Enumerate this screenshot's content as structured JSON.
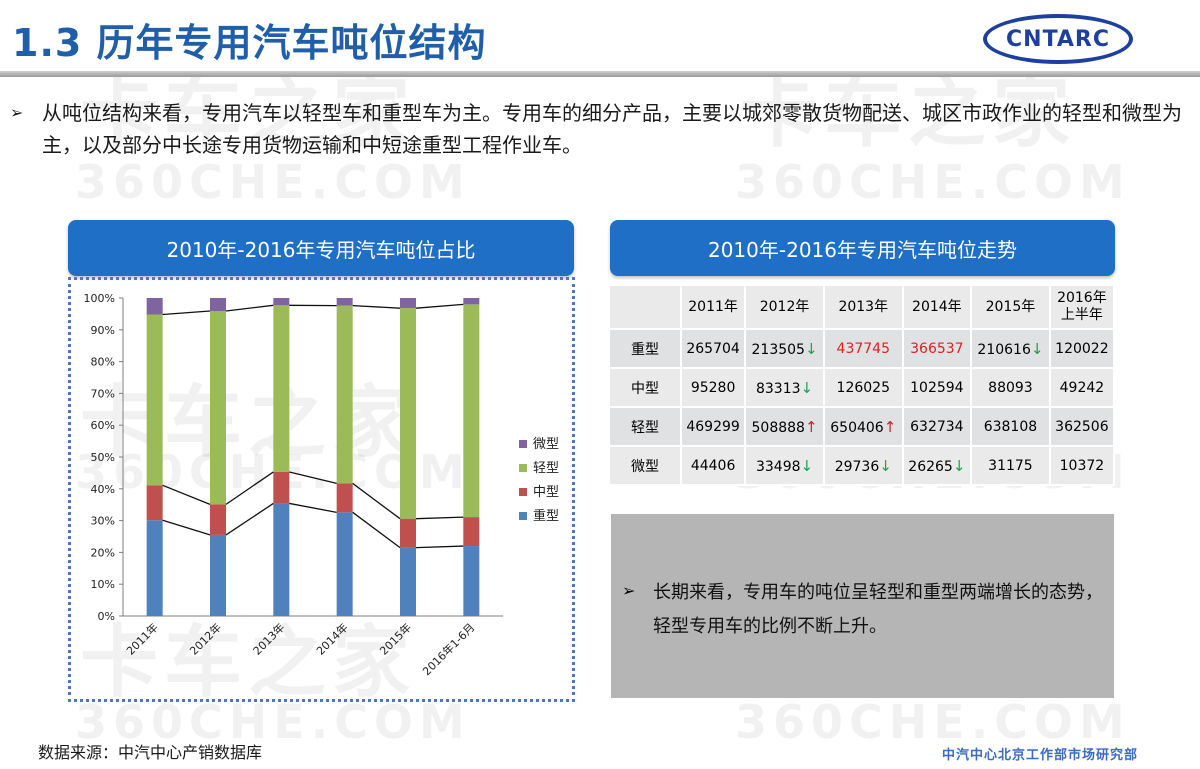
{
  "page": {
    "title": "1.3 历年专用汽车吨位结构",
    "logo_text": "CNTARC",
    "intro": "从吨位结构来看，专用汽车以轻型车和重型车为主。专用车的细分产品，主要以城郊零散货物配送、城区市政作业的轻型和微型为主，以及部分中长途专用货物运输和中短途重型工程作业车。",
    "bullet": "➢",
    "source": "数据来源：中汽中心产销数据库",
    "org": "中汽中心北京工作部市场研究部",
    "watermark": {
      "logo": "卡车之家",
      "url": "360CHE.COM"
    }
  },
  "chart_panel": {
    "title": "2010年-2016年专用汽车吨位占比"
  },
  "table_panel": {
    "title": "2010年-2016年专用汽车吨位走势",
    "headers": [
      "",
      "2011年",
      "2012年",
      "2013年",
      "2014年",
      "2015年",
      "2016年上半年"
    ],
    "header_last_line1": "2016年",
    "header_last_line2": "上半年",
    "rows": [
      {
        "label": "重型",
        "cells": [
          {
            "v": "265704",
            "red": false,
            "arrow": ""
          },
          {
            "v": "213505",
            "red": false,
            "arrow": "down"
          },
          {
            "v": "437745",
            "red": true,
            "arrow": ""
          },
          {
            "v": "366537",
            "red": true,
            "arrow": ""
          },
          {
            "v": "210616",
            "red": false,
            "arrow": "down"
          },
          {
            "v": "120022",
            "red": false,
            "arrow": ""
          }
        ]
      },
      {
        "label": "中型",
        "cells": [
          {
            "v": "95280",
            "red": false,
            "arrow": ""
          },
          {
            "v": "83313",
            "red": false,
            "arrow": "down"
          },
          {
            "v": "126025",
            "red": false,
            "arrow": ""
          },
          {
            "v": "102594",
            "red": false,
            "arrow": ""
          },
          {
            "v": "88093",
            "red": false,
            "arrow": ""
          },
          {
            "v": "49242",
            "red": false,
            "arrow": ""
          }
        ]
      },
      {
        "label": "轻型",
        "cells": [
          {
            "v": "469299",
            "red": false,
            "arrow": ""
          },
          {
            "v": "508888",
            "red": false,
            "arrow": "up"
          },
          {
            "v": "650406",
            "red": false,
            "arrow": "up"
          },
          {
            "v": "632734",
            "red": false,
            "arrow": ""
          },
          {
            "v": "638108",
            "red": false,
            "arrow": ""
          },
          {
            "v": "362506",
            "red": false,
            "arrow": ""
          }
        ]
      },
      {
        "label": "微型",
        "cells": [
          {
            "v": "44406",
            "red": false,
            "arrow": ""
          },
          {
            "v": "33498",
            "red": false,
            "arrow": "down"
          },
          {
            "v": "29736",
            "red": false,
            "arrow": "down"
          },
          {
            "v": "26265",
            "red": false,
            "arrow": "down"
          },
          {
            "v": "31175",
            "red": false,
            "arrow": ""
          },
          {
            "v": "10372",
            "red": false,
            "arrow": ""
          }
        ]
      }
    ],
    "arrow_up": "↑",
    "arrow_down": "↓"
  },
  "conclusion": "长期来看，专用车的吨位呈轻型和重型两端增长的态势，轻型专用车的比例不断上升。",
  "colors": {
    "heavy": "#4f81bd",
    "medium": "#c0504d",
    "light": "#9bbb59",
    "micro": "#8064a2",
    "panel": "#1f6fc6",
    "title": "#1f5ea8"
  },
  "chart_data": {
    "type": "bar",
    "stacked": true,
    "categories": [
      "2011年",
      "2012年",
      "2013年",
      "2014年",
      "2015年",
      "2016年1-6月"
    ],
    "series": [
      {
        "name": "重型",
        "color": "#4f81bd",
        "values": [
          30.1,
          25.5,
          35.4,
          32.6,
          21.5,
          22.0
        ]
      },
      {
        "name": "中型",
        "color": "#c0504d",
        "values": [
          11.0,
          9.6,
          9.9,
          9.1,
          9.1,
          9.1
        ]
      },
      {
        "name": "轻型",
        "color": "#9bbb59",
        "values": [
          53.7,
          60.8,
          52.4,
          55.9,
          66.2,
          66.9
        ]
      },
      {
        "name": "微型",
        "color": "#8064a2",
        "values": [
          5.2,
          4.1,
          2.3,
          2.4,
          3.2,
          2.0
        ]
      }
    ],
    "ylim": [
      0,
      100
    ],
    "yticks": [
      "0%",
      "10%",
      "20%",
      "30%",
      "40%",
      "50%",
      "60%",
      "70%",
      "80%",
      "90%",
      "100%"
    ],
    "legend": [
      "微型",
      "轻型",
      "中型",
      "重型"
    ],
    "legend_position": "right",
    "series_lines": true,
    "grid": false
  }
}
